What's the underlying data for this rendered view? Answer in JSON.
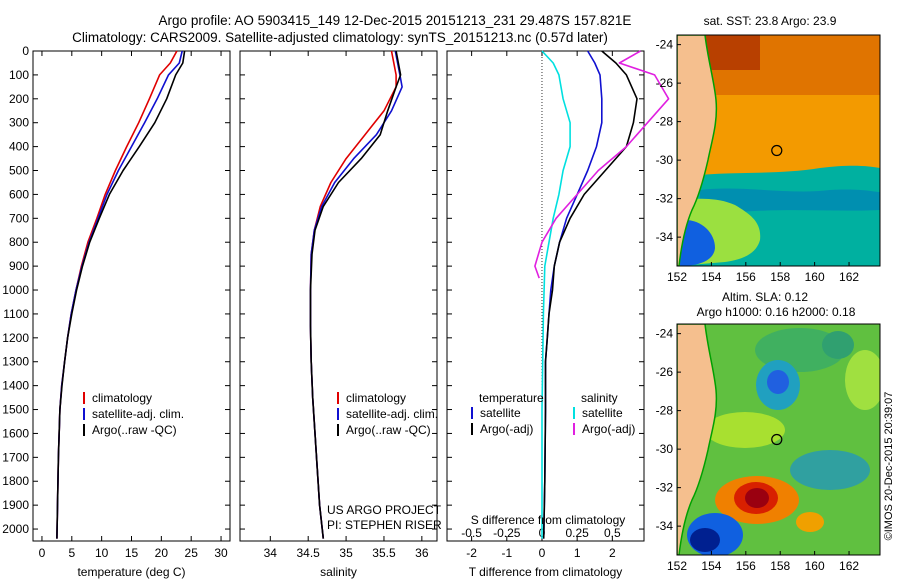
{
  "title": {
    "line1": "Argo profile: AO 5903415_149 12-Dec-2015 20151213_231 29.487S 157.821E",
    "line2": "Climatology: CARS2009. Satellite-adjusted climatology: synTS_20151213.nc (0.57d later)"
  },
  "colors": {
    "climatology": "#e00000",
    "satellite": "#1010d0",
    "argo": "#000000",
    "salinity_satellite": "#00e0e0",
    "salinity_argo": "#e020e0",
    "land": "#f5bf8e",
    "coast": "#00a000"
  },
  "legend_profile": [
    "climatology",
    "satellite-adj. clim.",
    "Argo(..raw -QC)"
  ],
  "legend_diff": {
    "temp_header": "temperature",
    "sal_header": "salinity",
    "satellite": "satellite",
    "argo": "Argo(-adj)"
  },
  "project_text": [
    "US ARGO PROJECT",
    "PI: STEPHEN RISER"
  ],
  "diff_top_label": "S difference from climatology",
  "sst_title": "sat. SST: 23.8 Argo: 23.9",
  "sla_title": [
    "Altim. SLA: 0.12",
    "Argo h1000: 0.16 h2000: 0.18"
  ],
  "credit": "©IMOS 20-Dec-2015 20:39:07",
  "chart_data": [
    {
      "type": "line",
      "name": "temperature-panel",
      "xlabel": "temperature (deg C)",
      "ylabel": "",
      "xlim": [
        -1.5,
        31.5
      ],
      "ylim": [
        2050,
        0
      ],
      "xticks": [
        0,
        5,
        10,
        15,
        20,
        25,
        30
      ],
      "yticks": [
        0,
        100,
        200,
        300,
        400,
        500,
        600,
        700,
        800,
        900,
        1000,
        1100,
        1200,
        1300,
        1400,
        1500,
        1600,
        1700,
        1800,
        1900,
        2000
      ],
      "series": [
        {
          "name": "climatology",
          "color": "#e00000",
          "x": [
            22.6,
            21.5,
            19.7,
            18.0,
            16.2,
            14.2,
            12.3,
            10.6,
            9.2,
            7.7,
            6.6,
            5.7,
            4.9,
            4.3,
            3.8,
            3.3,
            3.0,
            2.75,
            2.5
          ],
          "y": [
            0,
            50,
            100,
            200,
            300,
            400,
            500,
            600,
            700,
            800,
            900,
            1000,
            1100,
            1200,
            1300,
            1400,
            1500,
            1700,
            2040
          ]
        },
        {
          "name": "satellite-adj. clim.",
          "color": "#1010d0",
          "x": [
            23.5,
            23.0,
            21.2,
            19.3,
            17.2,
            15.0,
            12.8,
            10.9,
            9.4,
            7.9,
            6.7,
            5.7,
            4.9,
            4.3,
            3.8,
            3.3,
            3.0,
            2.75,
            2.5
          ],
          "y": [
            0,
            50,
            100,
            200,
            300,
            400,
            500,
            600,
            700,
            800,
            900,
            1000,
            1100,
            1200,
            1300,
            1400,
            1500,
            1700,
            2040
          ]
        },
        {
          "name": "Argo(..raw -QC)",
          "color": "#000000",
          "x": [
            23.9,
            23.6,
            22.4,
            20.9,
            18.9,
            16.3,
            13.6,
            11.3,
            9.6,
            8.0,
            6.8,
            5.8,
            5.0,
            4.3,
            3.8,
            3.35,
            3.0,
            2.75,
            2.5
          ],
          "y": [
            0,
            50,
            100,
            200,
            300,
            400,
            500,
            600,
            700,
            800,
            900,
            1000,
            1100,
            1200,
            1300,
            1400,
            1500,
            1700,
            2040
          ]
        }
      ]
    },
    {
      "type": "line",
      "name": "salinity-panel",
      "xlabel": "salinity",
      "xlim": [
        33.6,
        36.2
      ],
      "ylim": [
        2050,
        0
      ],
      "xticks": [
        34,
        34.5,
        35,
        35.5,
        36
      ],
      "series": [
        {
          "name": "climatology",
          "color": "#e00000",
          "x": [
            35.6,
            35.66,
            35.66,
            35.5,
            35.25,
            35.0,
            34.8,
            34.66,
            34.58,
            34.54,
            34.53,
            34.53,
            34.54,
            34.56,
            34.59,
            34.62,
            34.65,
            34.7
          ],
          "y": [
            0,
            100,
            150,
            250,
            350,
            450,
            550,
            650,
            750,
            850,
            1000,
            1150,
            1300,
            1450,
            1600,
            1750,
            1900,
            2040
          ]
        },
        {
          "name": "satellite-adj. clim.",
          "color": "#1010d0",
          "x": [
            35.65,
            35.71,
            35.74,
            35.6,
            35.4,
            35.1,
            34.85,
            34.68,
            34.58,
            34.54,
            34.53,
            34.53,
            34.54,
            34.56,
            34.59,
            34.62,
            34.65,
            34.7
          ],
          "y": [
            0,
            100,
            150,
            250,
            350,
            450,
            550,
            650,
            750,
            850,
            1000,
            1150,
            1300,
            1450,
            1600,
            1750,
            1900,
            2040
          ]
        },
        {
          "name": "Argo(..raw -QC)",
          "color": "#000000",
          "x": [
            35.66,
            35.72,
            35.66,
            35.55,
            35.45,
            35.2,
            34.9,
            34.7,
            34.59,
            34.55,
            34.53,
            34.53,
            34.54,
            34.56,
            34.59,
            34.62,
            34.65,
            34.7
          ],
          "y": [
            0,
            100,
            150,
            250,
            350,
            450,
            550,
            650,
            750,
            850,
            1000,
            1150,
            1300,
            1450,
            1600,
            1750,
            1900,
            2040
          ]
        }
      ]
    },
    {
      "type": "line",
      "name": "difference-panel",
      "xlabel": "T difference from climatology",
      "top_xlabel": "S difference from climatology",
      "xlim": [
        -2.7,
        2.9
      ],
      "ylim": [
        2050,
        0
      ],
      "xticks": [
        -2,
        -1,
        0,
        1,
        2
      ],
      "top_xticks": [
        -0.5,
        -0.25,
        0,
        0.25,
        0.5
      ],
      "top_xtick_labels": [
        "-0.5",
        "-0.25",
        "0",
        "0.25",
        "0.5"
      ],
      "series": [
        {
          "name": "temperature satellite",
          "color": "#1010d0",
          "x": [
            1.3,
            1.5,
            1.65,
            1.7,
            1.7,
            1.55,
            1.3,
            1.0,
            0.7,
            0.5,
            0.35,
            0.25,
            0.2,
            0.15,
            0.1,
            0.1,
            0.08,
            0.05
          ],
          "y": [
            0,
            50,
            100,
            200,
            300,
            400,
            500,
            600,
            700,
            800,
            900,
            1000,
            1100,
            1200,
            1300,
            1500,
            1800,
            2040
          ]
        },
        {
          "name": "temperature Argo(-adj)",
          "color": "#000000",
          "x": [
            1.7,
            2.1,
            2.4,
            2.7,
            2.6,
            2.4,
            1.8,
            1.2,
            0.8,
            0.5,
            0.35,
            0.3,
            0.2,
            0.15,
            0.1,
            0.1,
            0.08,
            0.05
          ],
          "y": [
            0,
            50,
            100,
            200,
            300,
            400,
            500,
            600,
            700,
            800,
            900,
            1000,
            1100,
            1200,
            1300,
            1500,
            1800,
            2040
          ]
        },
        {
          "name": "salinity satellite",
          "color": "#00e0e0",
          "x": [
            0.0,
            0.08,
            0.12,
            0.15,
            0.2,
            0.2,
            0.15,
            0.12,
            0.08,
            0.05,
            0.02,
            0.01,
            0.0,
            0.0
          ],
          "y": [
            0,
            50,
            100,
            200,
            300,
            400,
            500,
            600,
            700,
            800,
            900,
            1100,
            1500,
            2040
          ]
        },
        {
          "name": "salinity Argo(-adj)",
          "color": "#e020e0",
          "x": [
            0.7,
            0.55,
            0.8,
            0.9,
            0.75,
            0.6,
            0.4,
            0.25,
            0.1,
            0.0,
            -0.05,
            -0.02
          ],
          "y": [
            0,
            50,
            100,
            200,
            300,
            400,
            500,
            600,
            700,
            800,
            900,
            950
          ]
        }
      ]
    },
    {
      "type": "heatmap",
      "name": "sst-map",
      "title": "sat. SST: 23.8 Argo: 23.9",
      "xlim": [
        152,
        163.8
      ],
      "ylim": [
        -35.5,
        -23.5
      ],
      "xticks": [
        152,
        154,
        156,
        158,
        160,
        162
      ],
      "yticks": [
        -24,
        -26,
        -28,
        -30,
        -32,
        -34
      ],
      "marker": {
        "lon": 157.8,
        "lat": -29.5
      }
    },
    {
      "type": "heatmap",
      "name": "sla-map",
      "title": "Altim. SLA: 0.12",
      "xlim": [
        152,
        163.8
      ],
      "ylim": [
        -35.5,
        -23.5
      ],
      "xticks": [
        152,
        154,
        156,
        158,
        160,
        162
      ],
      "yticks": [
        -24,
        -26,
        -28,
        -30,
        -32,
        -34
      ],
      "marker": {
        "lon": 157.8,
        "lat": -29.5
      }
    }
  ]
}
